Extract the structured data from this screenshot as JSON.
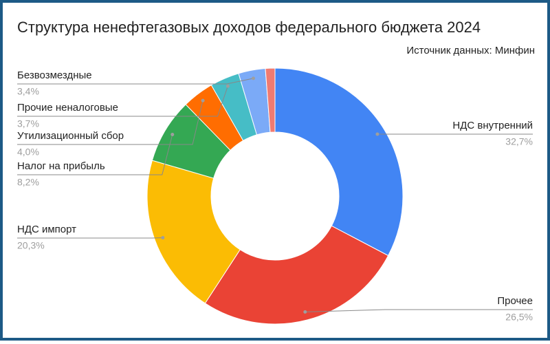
{
  "chart_data": {
    "type": "donut",
    "title": "Структура ненефтегазовых доходов федерального бюджета 2024",
    "subtitle": "Источник данных: Минфин",
    "categories": [
      "НДС внутренний",
      "Прочее",
      "НДС импорт",
      "Налог на прибыль",
      "Утилизационный сбор",
      "Прочие неналоговые",
      "Безвозмездные",
      null
    ],
    "values": [
      32.7,
      26.5,
      20.3,
      8.2,
      4.0,
      3.7,
      3.4,
      1.2
    ],
    "value_labels": [
      "32,7%",
      "26,5%",
      "20,3%",
      "8,2%",
      "4,0%",
      "3,7%",
      "3,4%",
      null
    ],
    "colors": [
      "#4285f4",
      "#ea4335",
      "#fbbc04",
      "#34a853",
      "#ff6d01",
      "#46bdc6",
      "#7baaf7",
      "#f07b72"
    ]
  }
}
